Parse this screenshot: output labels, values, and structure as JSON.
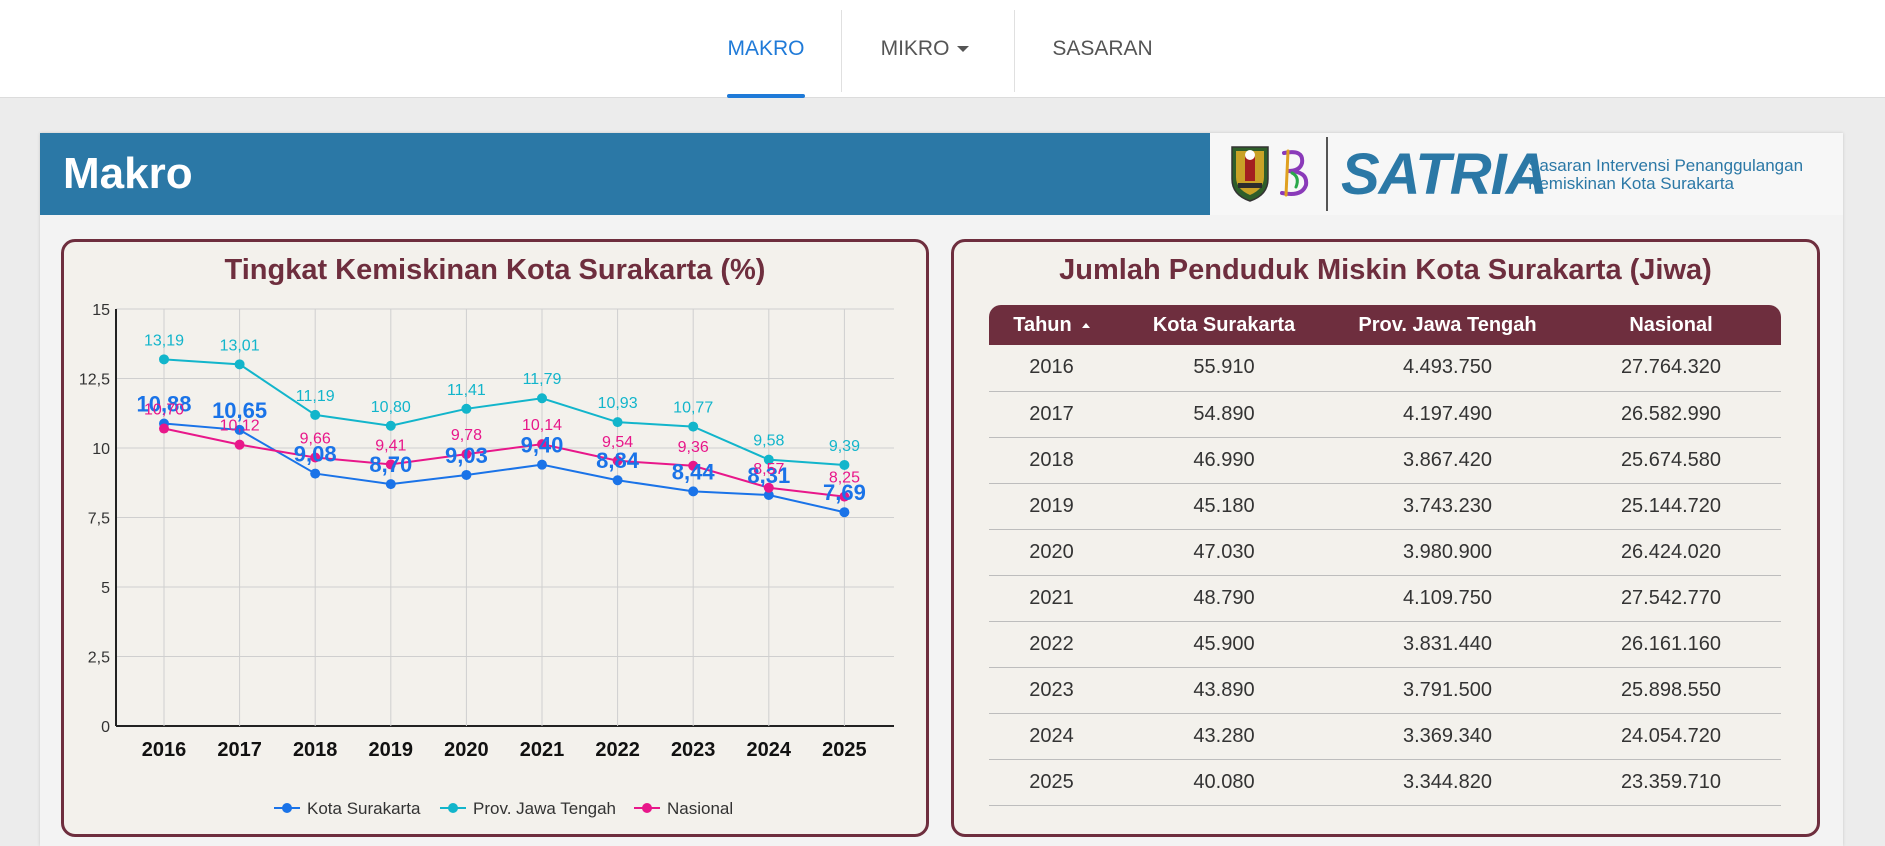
{
  "nav": {
    "items": [
      {
        "label": "MAKRO",
        "active": true
      },
      {
        "label": "MIKRO",
        "active": false
      },
      {
        "label": "SASARAN",
        "active": false
      }
    ]
  },
  "banner": {
    "title": "Makro",
    "logo_word": "SATRIA",
    "logo_tagline_1": "Sasaran Intervensi Penanggulangan",
    "logo_tagline_2": "Kemiskinan Kota Surakarta"
  },
  "colors": {
    "accent": "#1f7ad8",
    "banner": "#2b78a6",
    "maroon": "#6e2e3e",
    "series_kota": "#1a73e8",
    "series_prov": "#12b5cb",
    "series_nasional": "#e8178a"
  },
  "chart_data": {
    "type": "line",
    "title": "Tingkat Kemiskinan Kota Surakarta (%)",
    "categories": [
      "2016",
      "2017",
      "2018",
      "2019",
      "2020",
      "2021",
      "2022",
      "2023",
      "2024",
      "2025"
    ],
    "ylim": [
      0,
      15
    ],
    "yticks": [
      "0",
      "2,5",
      "5",
      "7,5",
      "10",
      "12,5",
      "15"
    ],
    "grid": true,
    "legend": "bottom",
    "series": [
      {
        "name": "Kota Surakarta",
        "values": [
          10.88,
          10.65,
          9.08,
          8.7,
          9.03,
          9.4,
          8.84,
          8.44,
          8.31,
          7.69
        ],
        "labels": [
          "10,88",
          "10,65",
          "9,08",
          "8,70",
          "9,03",
          "9,40",
          "8,84",
          "8,44",
          "8,31",
          "7,69"
        ]
      },
      {
        "name": "Prov. Jawa Tengah",
        "values": [
          13.19,
          13.01,
          11.19,
          10.8,
          11.41,
          11.79,
          10.93,
          10.77,
          9.58,
          9.39
        ],
        "labels": [
          "13,19",
          "13,01",
          "11,19",
          "10,80",
          "11,41",
          "11,79",
          "10,93",
          "10,77",
          "9,58",
          "9,39"
        ]
      },
      {
        "name": "Nasional",
        "values": [
          10.7,
          10.12,
          9.66,
          9.41,
          9.78,
          10.14,
          9.54,
          9.36,
          8.57,
          8.25
        ],
        "labels": [
          "10,70",
          "10,12",
          "9,66",
          "9,41",
          "9,78",
          "10,14",
          "9,54",
          "9,36",
          "8,57",
          "8,25"
        ]
      }
    ]
  },
  "table": {
    "title": "Jumlah Penduduk Miskin Kota Surakarta (Jiwa)",
    "headers": [
      "Tahun",
      "Kota Surakarta",
      "Prov. Jawa Tengah",
      "Nasional"
    ],
    "rows": [
      [
        "2016",
        "55.910",
        "4.493.750",
        "27.764.320"
      ],
      [
        "2017",
        "54.890",
        "4.197.490",
        "26.582.990"
      ],
      [
        "2018",
        "46.990",
        "3.867.420",
        "25.674.580"
      ],
      [
        "2019",
        "45.180",
        "3.743.230",
        "25.144.720"
      ],
      [
        "2020",
        "47.030",
        "3.980.900",
        "26.424.020"
      ],
      [
        "2021",
        "48.790",
        "4.109.750",
        "27.542.770"
      ],
      [
        "2022",
        "45.900",
        "3.831.440",
        "26.161.160"
      ],
      [
        "2023",
        "43.890",
        "3.791.500",
        "25.898.550"
      ],
      [
        "2024",
        "43.280",
        "3.369.340",
        "24.054.720"
      ],
      [
        "2025",
        "40.080",
        "3.344.820",
        "23.359.710"
      ]
    ]
  }
}
